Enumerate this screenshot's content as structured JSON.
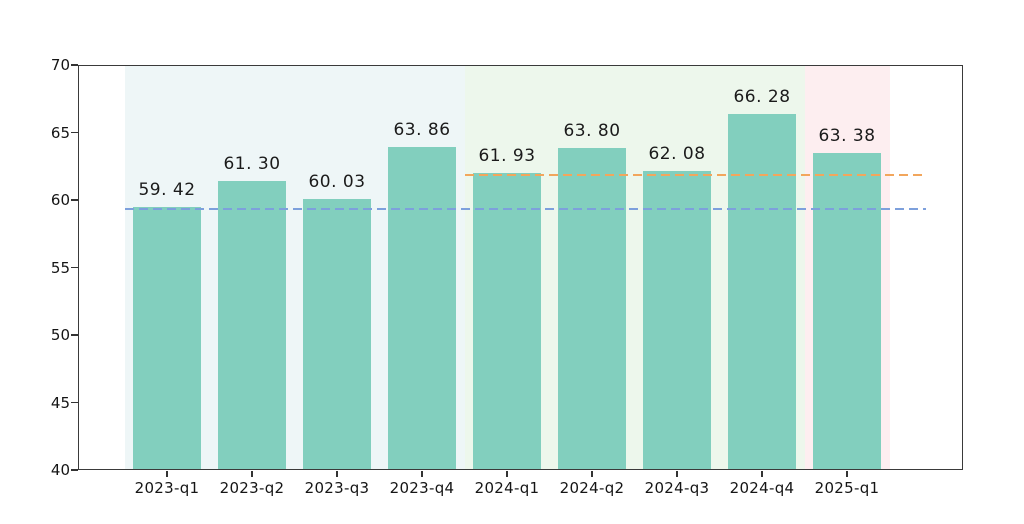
{
  "chart_data": {
    "type": "bar",
    "title": "",
    "xlabel": "",
    "ylabel": "",
    "categories": [
      "2023-q1",
      "2023-q2",
      "2023-q3",
      "2023-q4",
      "2024-q1",
      "2024-q2",
      "2024-q3",
      "2024-q4",
      "2025-q1"
    ],
    "values": [
      59.42,
      61.3,
      60.03,
      63.86,
      61.93,
      63.8,
      62.08,
      66.28,
      63.38
    ],
    "bar_value_labels": [
      "59. 42",
      "61. 30",
      "60. 03",
      "63. 86",
      "61. 93",
      "63. 80",
      "62. 08",
      "66. 28",
      "63. 38"
    ],
    "ylim": [
      40,
      70
    ],
    "yticks": [
      40,
      45,
      50,
      55,
      60,
      65,
      70
    ],
    "grid": false,
    "legend_position": "none",
    "bar_color": "#82cfbe",
    "background_bands": [
      {
        "name": "year-2023",
        "from_category": "2023-q1",
        "to_category": "2023-q4",
        "color": "#eef6f7"
      },
      {
        "name": "year-2024",
        "from_category": "2024-q1",
        "to_category": "2024-q4",
        "color": "#edf7ec"
      },
      {
        "name": "year-2025",
        "from_category": "2025-q1",
        "to_category": "2025-q1",
        "color": "#fdeef0"
      }
    ],
    "reference_lines": [
      {
        "name": "level-2023-q1",
        "value": 59.42,
        "style": "dashed",
        "color": "#7da0dc",
        "start_category": "2023-q1"
      },
      {
        "name": "level-2024-q1",
        "value": 61.93,
        "style": "dashed",
        "color": "#f2a65c",
        "start_category": "2024-q1"
      }
    ]
  }
}
